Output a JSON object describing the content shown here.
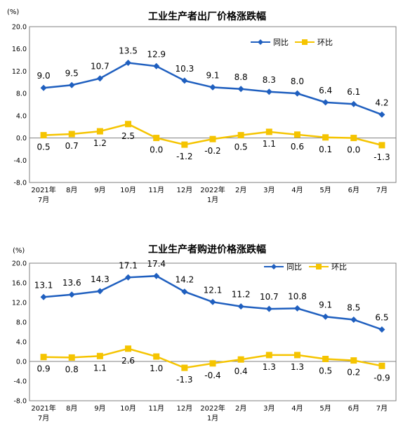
{
  "chart_data": [
    {
      "type": "line",
      "title": "工业生产者出厂价格涨跌幅",
      "unit": "(%)",
      "categories": [
        "2021年\n7月",
        "8月",
        "9月",
        "10月",
        "11月",
        "12月",
        "2022年\n1月",
        "2月",
        "3月",
        "4月",
        "5月",
        "6月",
        "7月"
      ],
      "ylim": [
        -8.0,
        20.0
      ],
      "yticks": [
        "20.0",
        "16.0",
        "12.0",
        "8.0",
        "4.0",
        "0.0",
        "-4.0",
        "-8.0"
      ],
      "legend_position": "top-right",
      "series": [
        {
          "name": "同比",
          "color": "#1f5fbf",
          "marker": "diamond",
          "values": [
            9.0,
            9.5,
            10.7,
            13.5,
            12.9,
            10.3,
            9.1,
            8.8,
            8.3,
            8.0,
            6.4,
            6.1,
            4.2
          ],
          "labels": [
            "9.0",
            "9.5",
            "10.7",
            "13.5",
            "12.9",
            "10.3",
            "9.1",
            "8.8",
            "8.3",
            "8.0",
            "6.4",
            "6.1",
            "4.2"
          ]
        },
        {
          "name": "环比",
          "color": "#f5c400",
          "marker": "square",
          "values": [
            0.5,
            0.7,
            1.2,
            2.5,
            0.0,
            -1.2,
            -0.2,
            0.5,
            1.1,
            0.6,
            0.1,
            0.0,
            -1.3
          ],
          "labels": [
            "0.5",
            "0.7",
            "1.2",
            "2.5",
            "0.0",
            "-1.2",
            "-0.2",
            "0.5",
            "1.1",
            "0.6",
            "0.1",
            "0.0",
            "-1.3"
          ]
        }
      ]
    },
    {
      "type": "line",
      "title": "工业生产者购进价格涨跌幅",
      "unit": "(%)",
      "categories": [
        "2021年\n7月",
        "8月",
        "9月",
        "10月",
        "11月",
        "12月",
        "2022年\n1月",
        "2月",
        "3月",
        "4月",
        "5月",
        "6月",
        "7月"
      ],
      "ylim": [
        -8.0,
        20.0
      ],
      "yticks": [
        "20.0",
        "16.0",
        "12.0",
        "8.0",
        "4.0",
        "0.0",
        "-4.0",
        "-8.0"
      ],
      "legend_position": "top-right",
      "series": [
        {
          "name": "同比",
          "color": "#1f5fbf",
          "marker": "diamond",
          "values": [
            13.1,
            13.6,
            14.3,
            17.1,
            17.4,
            14.2,
            12.1,
            11.2,
            10.7,
            10.8,
            9.1,
            8.5,
            6.5
          ],
          "labels": [
            "13.1",
            "13.6",
            "14.3",
            "17.1",
            "17.4",
            "14.2",
            "12.1",
            "11.2",
            "10.7",
            "10.8",
            "9.1",
            "8.5",
            "6.5"
          ]
        },
        {
          "name": "环比",
          "color": "#f5c400",
          "marker": "square",
          "values": [
            0.9,
            0.8,
            1.1,
            2.6,
            1.0,
            -1.3,
            -0.4,
            0.4,
            1.3,
            1.3,
            0.5,
            0.2,
            -0.9
          ],
          "labels": [
            "0.9",
            "0.8",
            "1.1",
            "2.6",
            "1.0",
            "-1.3",
            "-0.4",
            "0.4",
            "1.3",
            "1.3",
            "0.5",
            "0.2",
            "-0.9"
          ]
        }
      ]
    }
  ]
}
